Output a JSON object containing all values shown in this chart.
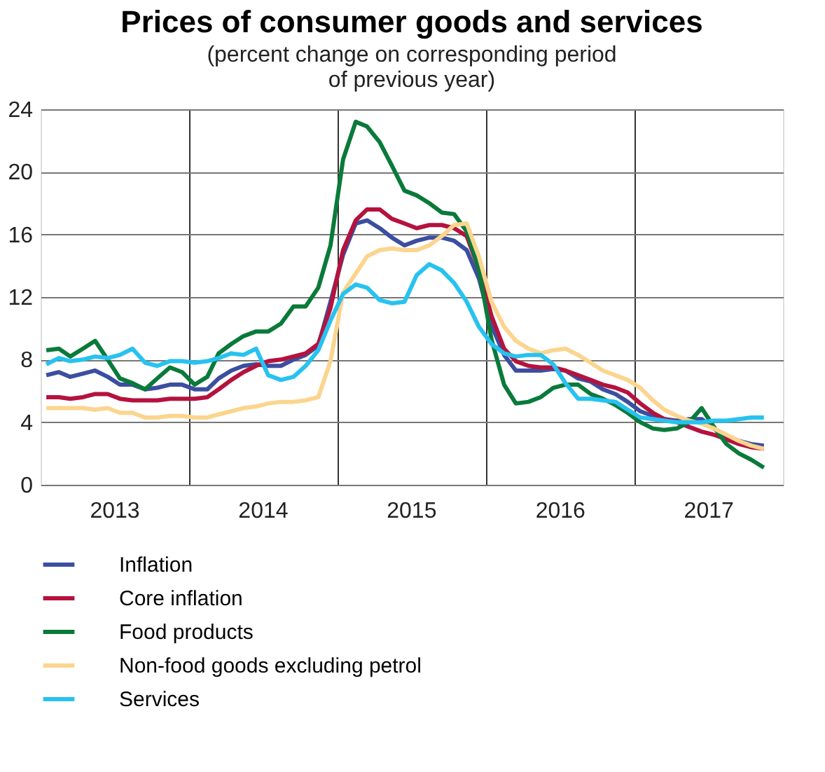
{
  "chart_data": {
    "type": "line",
    "title": "Prices of consumer goods and services",
    "subtitle": "(percent change on corresponding period\nof previous year)",
    "x": [
      "2013-01-15",
      "2013-02-15",
      "2013-03-15",
      "2013-04-15",
      "2013-05-15",
      "2013-06-15",
      "2013-07-15",
      "2013-08-15",
      "2013-09-15",
      "2013-10-15",
      "2013-11-15",
      "2013-12-15",
      "2014-01-15",
      "2014-02-15",
      "2014-03-15",
      "2014-04-15",
      "2014-05-15",
      "2014-06-15",
      "2014-07-15",
      "2014-08-15",
      "2014-09-15",
      "2014-10-15",
      "2014-11-15",
      "2014-12-15",
      "2015-01-15",
      "2015-02-15",
      "2015-03-15",
      "2015-04-15",
      "2015-05-15",
      "2015-06-15",
      "2015-07-15",
      "2015-08-15",
      "2015-09-15",
      "2015-10-15",
      "2015-11-15",
      "2015-12-15",
      "2016-01-15",
      "2016-02-15",
      "2016-03-15",
      "2016-04-15",
      "2016-05-15",
      "2016-06-15",
      "2016-07-15",
      "2016-08-15",
      "2016-09-15",
      "2016-10-15",
      "2016-11-15",
      "2016-12-15",
      "2017-01-15",
      "2017-02-15",
      "2017-03-15",
      "2017-04-15",
      "2017-05-15",
      "2017-06-15",
      "2017-07-15",
      "2017-08-15",
      "2017-09-15",
      "2017-10-15",
      "2017-11-15"
    ],
    "series": [
      {
        "name": "Inflation",
        "color": "#3c4ea0",
        "values": [
          7.0,
          7.2,
          6.9,
          7.1,
          7.3,
          6.9,
          6.4,
          6.4,
          6.1,
          6.2,
          6.4,
          6.4,
          6.1,
          6.1,
          6.8,
          7.3,
          7.6,
          7.7,
          7.6,
          7.6,
          8.0,
          8.3,
          8.9,
          11.7,
          14.7,
          16.7,
          16.9,
          16.4,
          15.8,
          15.3,
          15.6,
          15.8,
          15.8,
          15.6,
          15.0,
          13.2,
          10.2,
          8.3,
          7.3,
          7.3,
          7.3,
          7.4,
          7.3,
          6.8,
          6.6,
          6.1,
          5.8,
          5.3,
          4.7,
          4.4,
          4.2,
          4.1,
          4.2,
          4.2,
          3.6,
          3.1,
          2.8,
          2.6,
          2.5
        ]
      },
      {
        "name": "Core inflation",
        "color": "#b5123e",
        "values": [
          5.6,
          5.6,
          5.5,
          5.6,
          5.8,
          5.8,
          5.5,
          5.4,
          5.4,
          5.4,
          5.5,
          5.5,
          5.5,
          5.6,
          6.1,
          6.7,
          7.2,
          7.6,
          7.9,
          8.0,
          8.2,
          8.4,
          9.0,
          11.3,
          15.0,
          16.9,
          17.6,
          17.6,
          17.0,
          16.7,
          16.4,
          16.6,
          16.6,
          16.4,
          15.9,
          13.8,
          10.8,
          8.7,
          7.9,
          7.6,
          7.5,
          7.5,
          7.3,
          7.0,
          6.7,
          6.4,
          6.2,
          5.9,
          5.2,
          4.6,
          4.2,
          4.0,
          3.7,
          3.4,
          3.2,
          2.9,
          2.6,
          2.4,
          2.3
        ]
      },
      {
        "name": "Food products",
        "color": "#0a7a3a",
        "values": [
          8.6,
          8.7,
          8.2,
          8.7,
          9.2,
          8.0,
          6.8,
          6.5,
          6.1,
          6.8,
          7.5,
          7.2,
          6.4,
          6.9,
          8.4,
          9.0,
          9.5,
          9.8,
          9.8,
          10.3,
          11.4,
          11.4,
          12.6,
          15.3,
          20.8,
          23.2,
          22.9,
          21.9,
          20.4,
          18.8,
          18.5,
          18.0,
          17.4,
          17.3,
          16.2,
          13.8,
          9.3,
          6.4,
          5.2,
          5.3,
          5.6,
          6.2,
          6.4,
          6.4,
          5.8,
          5.5,
          5.1,
          4.6,
          4.0,
          3.6,
          3.5,
          3.6,
          4.0,
          4.9,
          3.7,
          2.6,
          2.0,
          1.6,
          1.1
        ]
      },
      {
        "name": "Non-food goods excluding petrol",
        "color": "#fbd58e",
        "values": [
          4.9,
          4.9,
          4.9,
          4.9,
          4.8,
          4.9,
          4.6,
          4.6,
          4.3,
          4.3,
          4.4,
          4.4,
          4.3,
          4.3,
          4.5,
          4.7,
          4.9,
          5.0,
          5.2,
          5.3,
          5.3,
          5.4,
          5.6,
          7.9,
          12.3,
          13.5,
          14.6,
          15.0,
          15.1,
          15.0,
          15.0,
          15.3,
          15.9,
          16.6,
          16.7,
          14.6,
          11.7,
          10.1,
          9.2,
          8.7,
          8.4,
          8.6,
          8.7,
          8.3,
          7.8,
          7.3,
          7.0,
          6.7,
          6.2,
          5.4,
          4.8,
          4.4,
          4.1,
          3.9,
          3.6,
          3.2,
          2.8,
          2.5,
          2.3
        ]
      },
      {
        "name": "Services",
        "color": "#27c2f0",
        "values": [
          7.7,
          8.1,
          7.9,
          8.0,
          8.2,
          8.1,
          8.3,
          8.7,
          7.8,
          7.6,
          7.9,
          7.9,
          7.8,
          7.9,
          8.1,
          8.4,
          8.3,
          8.7,
          7.0,
          6.7,
          6.9,
          7.6,
          8.6,
          10.5,
          12.2,
          12.8,
          12.6,
          11.8,
          11.6,
          11.7,
          13.4,
          14.1,
          13.7,
          12.9,
          11.7,
          10.1,
          9.0,
          8.4,
          8.2,
          8.3,
          8.3,
          7.7,
          6.5,
          5.5,
          5.5,
          5.4,
          5.3,
          4.8,
          4.3,
          4.2,
          4.1,
          4.0,
          4.0,
          4.0,
          4.1,
          4.1,
          4.2,
          4.3,
          4.3
        ]
      }
    ],
    "xlim": [
      "2013-01-01",
      "2018-01-01"
    ],
    "xticks": [
      {
        "value": "2013-07-01",
        "label": "2013"
      },
      {
        "value": "2014-01-01",
        "label": null
      },
      {
        "value": "2014-07-01",
        "label": "2014"
      },
      {
        "value": "2015-01-01",
        "label": null
      },
      {
        "value": "2015-07-01",
        "label": "2015"
      },
      {
        "value": "2016-01-01",
        "label": null
      },
      {
        "value": "2016-07-01",
        "label": "2016"
      },
      {
        "value": "2017-01-01",
        "label": null
      },
      {
        "value": "2017-07-01",
        "label": "2017"
      }
    ],
    "ylim": [
      0,
      24
    ],
    "yticks": [
      0,
      4,
      8,
      12,
      16,
      20,
      24
    ],
    "grid": true,
    "legend": "bottom",
    "marker": "none",
    "line_style": "solid"
  }
}
